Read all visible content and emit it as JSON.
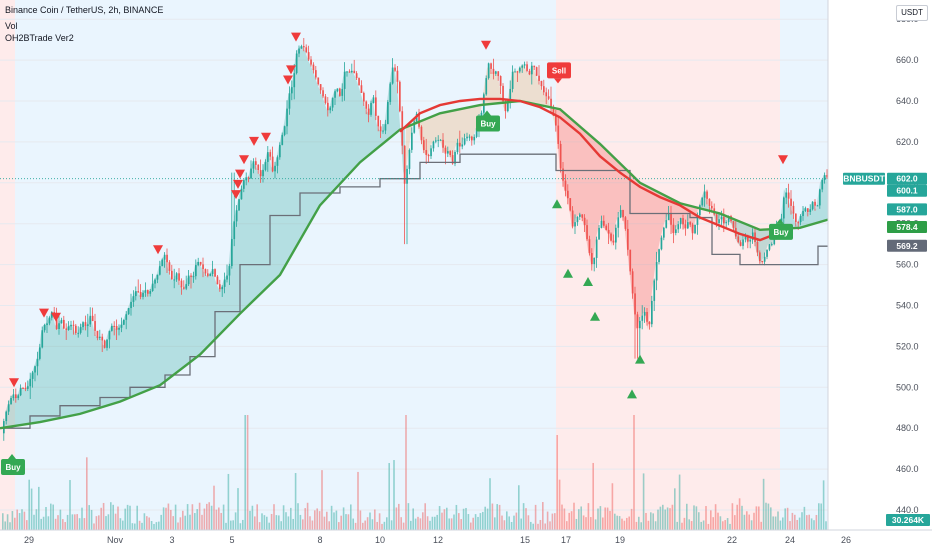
{
  "header": {
    "title": "Binance Coin / TetherUS, 2h, BINANCE",
    "indicator1": "Vol",
    "indicator2": "OH2BTrade Ver2",
    "currency_button": "USDT"
  },
  "price_axis": {
    "ticks": [
      440,
      460,
      480,
      500,
      520,
      540,
      560,
      580,
      600,
      620,
      640,
      660,
      680
    ],
    "tick_labels": [
      "440.0",
      "460.0",
      "480.0",
      "500.0",
      "520.0",
      "540.0",
      "560.0",
      "580.0",
      "600.0",
      "620.0",
      "640.0",
      "660.0",
      "680.0"
    ]
  },
  "price_tags": [
    {
      "text": "BNBUSDT",
      "value": 602.0,
      "color": "#26a69a",
      "kind": "symbol"
    },
    {
      "text": "602.0",
      "value": 602.0,
      "color": "#26a69a",
      "kind": "price"
    },
    {
      "text": "600.1",
      "value": 600.1,
      "color": "#26a69a",
      "kind": "price"
    },
    {
      "text": "587.0",
      "value": 587.0,
      "color": "#26a69a",
      "kind": "price"
    },
    {
      "text": "578.4",
      "value": 578.4,
      "color": "#2e9e47",
      "kind": "price"
    },
    {
      "text": "569.2",
      "value": 569.2,
      "color": "#636a78",
      "kind": "price"
    },
    {
      "text": "30.264K",
      "value": null,
      "color": "#26a69a",
      "kind": "volume"
    }
  ],
  "time_axis": {
    "labels": [
      "29",
      "Nov",
      "3",
      "5",
      "8",
      "10",
      "12",
      "15",
      "17",
      "19",
      "22",
      "24",
      "26"
    ]
  },
  "signals": [
    {
      "type": "buy",
      "text": "Buy"
    },
    {
      "type": "buy",
      "text": "Buy"
    },
    {
      "type": "sell",
      "text": "Sell"
    },
    {
      "type": "buy",
      "text": "Buy"
    }
  ],
  "colors": {
    "bull": "#26a69a",
    "bear": "#ef5350",
    "ma_fast": "#e53935",
    "ma_slow": "#43a047",
    "stop_line": "#6b6f78",
    "bg_long": "#e3f2fd",
    "bg_short": "#fde4e4"
  },
  "chart_data": {
    "type": "candlestick",
    "symbol": "BNBUSDT",
    "timeframe": "2h",
    "ylim": [
      434,
      690
    ],
    "close_path": [
      [
        0,
        476
      ],
      [
        4,
        486
      ],
      [
        8,
        492
      ],
      [
        12,
        497
      ],
      [
        16,
        494
      ],
      [
        20,
        500
      ],
      [
        26,
        499
      ],
      [
        30,
        505
      ],
      [
        34,
        510
      ],
      [
        38,
        516
      ],
      [
        42,
        530
      ],
      [
        46,
        531
      ],
      [
        52,
        538
      ],
      [
        56,
        528
      ],
      [
        60,
        534
      ],
      [
        64,
        527
      ],
      [
        68,
        530
      ],
      [
        72,
        531
      ],
      [
        76,
        525
      ],
      [
        82,
        532
      ],
      [
        86,
        529
      ],
      [
        90,
        536
      ],
      [
        96,
        524
      ],
      [
        100,
        525
      ],
      [
        104,
        519
      ],
      [
        108,
        527
      ],
      [
        112,
        531
      ],
      [
        116,
        528
      ],
      [
        120,
        530
      ],
      [
        124,
        534
      ],
      [
        128,
        539
      ],
      [
        132,
        544
      ],
      [
        136,
        548
      ],
      [
        140,
        544
      ],
      [
        144,
        548
      ],
      [
        148,
        545
      ],
      [
        152,
        551
      ],
      [
        156,
        554
      ],
      [
        160,
        561
      ],
      [
        164,
        565
      ],
      [
        168,
        558
      ],
      [
        172,
        551
      ],
      [
        176,
        556
      ],
      [
        180,
        549
      ],
      [
        184,
        548
      ],
      [
        188,
        555
      ],
      [
        192,
        553
      ],
      [
        196,
        562
      ],
      [
        200,
        560
      ],
      [
        204,
        556
      ],
      [
        208,
        554
      ],
      [
        212,
        558
      ],
      [
        216,
        551
      ],
      [
        220,
        547
      ],
      [
        224,
        553
      ],
      [
        228,
        556
      ],
      [
        232,
        578
      ],
      [
        236,
        587
      ],
      [
        240,
        596
      ],
      [
        244,
        603
      ],
      [
        248,
        602
      ],
      [
        252,
        611
      ],
      [
        256,
        608
      ],
      [
        260,
        603
      ],
      [
        264,
        609
      ],
      [
        268,
        617
      ],
      [
        272,
        605
      ],
      [
        276,
        611
      ],
      [
        280,
        621
      ],
      [
        284,
        628
      ],
      [
        288,
        643
      ],
      [
        292,
        648
      ],
      [
        296,
        664
      ],
      [
        300,
        667
      ],
      [
        304,
        666
      ],
      [
        308,
        660
      ],
      [
        312,
        656
      ],
      [
        316,
        650
      ],
      [
        320,
        645
      ],
      [
        324,
        640
      ],
      [
        328,
        634
      ],
      [
        332,
        642
      ],
      [
        336,
        647
      ],
      [
        340,
        641
      ],
      [
        344,
        655
      ],
      [
        348,
        654
      ],
      [
        352,
        655
      ],
      [
        356,
        651
      ],
      [
        360,
        645
      ],
      [
        364,
        638
      ],
      [
        368,
        633
      ],
      [
        372,
        644
      ],
      [
        376,
        629
      ],
      [
        380,
        625
      ],
      [
        384,
        626
      ],
      [
        388,
        644
      ],
      [
        392,
        657
      ],
      [
        396,
        653
      ],
      [
        400,
        629
      ],
      [
        404,
        598
      ],
      [
        408,
        614
      ],
      [
        412,
        628
      ],
      [
        416,
        634
      ],
      [
        420,
        622
      ],
      [
        424,
        614
      ],
      [
        428,
        613
      ],
      [
        432,
        620
      ],
      [
        436,
        621
      ],
      [
        440,
        621
      ],
      [
        444,
        614
      ],
      [
        448,
        616
      ],
      [
        452,
        609
      ],
      [
        456,
        620
      ],
      [
        460,
        617
      ],
      [
        464,
        622
      ],
      [
        468,
        623
      ],
      [
        472,
        620
      ],
      [
        476,
        627
      ],
      [
        480,
        632
      ],
      [
        484,
        647
      ],
      [
        488,
        659
      ],
      [
        492,
        653
      ],
      [
        496,
        655
      ],
      [
        500,
        647
      ],
      [
        504,
        634
      ],
      [
        508,
        641
      ],
      [
        512,
        655
      ],
      [
        516,
        654
      ],
      [
        520,
        657
      ],
      [
        524,
        658
      ],
      [
        528,
        652
      ],
      [
        532,
        659
      ],
      [
        536,
        652
      ],
      [
        540,
        648
      ],
      [
        544,
        643
      ],
      [
        548,
        641
      ],
      [
        552,
        634
      ],
      [
        556,
        626
      ],
      [
        560,
        606
      ],
      [
        564,
        597
      ],
      [
        568,
        591
      ],
      [
        572,
        578
      ],
      [
        576,
        583
      ],
      [
        580,
        585
      ],
      [
        584,
        579
      ],
      [
        588,
        567
      ],
      [
        592,
        558
      ],
      [
        596,
        573
      ],
      [
        600,
        582
      ],
      [
        604,
        578
      ],
      [
        608,
        575
      ],
      [
        612,
        569
      ],
      [
        616,
        581
      ],
      [
        620,
        587
      ],
      [
        624,
        580
      ],
      [
        628,
        563
      ],
      [
        632,
        545
      ],
      [
        636,
        528
      ],
      [
        640,
        534
      ],
      [
        644,
        537
      ],
      [
        648,
        528
      ],
      [
        652,
        547
      ],
      [
        656,
        562
      ],
      [
        660,
        572
      ],
      [
        664,
        580
      ],
      [
        668,
        585
      ],
      [
        672,
        575
      ],
      [
        676,
        578
      ],
      [
        680,
        583
      ],
      [
        684,
        577
      ],
      [
        688,
        582
      ],
      [
        692,
        575
      ],
      [
        696,
        583
      ],
      [
        700,
        591
      ],
      [
        704,
        596
      ],
      [
        708,
        589
      ],
      [
        712,
        587
      ],
      [
        716,
        580
      ],
      [
        720,
        584
      ],
      [
        724,
        579
      ],
      [
        728,
        584
      ],
      [
        732,
        579
      ],
      [
        736,
        572
      ],
      [
        740,
        569
      ],
      [
        744,
        575
      ],
      [
        748,
        570
      ],
      [
        752,
        576
      ],
      [
        756,
        567
      ],
      [
        760,
        560
      ],
      [
        764,
        564
      ],
      [
        768,
        570
      ],
      [
        772,
        570
      ],
      [
        776,
        578
      ],
      [
        780,
        580
      ],
      [
        784,
        597
      ],
      [
        788,
        592
      ],
      [
        792,
        586
      ],
      [
        796,
        579
      ],
      [
        800,
        584
      ],
      [
        804,
        588
      ],
      [
        808,
        585
      ],
      [
        812,
        591
      ],
      [
        816,
        587
      ],
      [
        820,
        600
      ],
      [
        824,
        604
      ],
      [
        828,
        602
      ]
    ],
    "ma_slow_path": [
      [
        0,
        480
      ],
      [
        40,
        483
      ],
      [
        80,
        487
      ],
      [
        120,
        493
      ],
      [
        160,
        501
      ],
      [
        200,
        516
      ],
      [
        240,
        536
      ],
      [
        280,
        555
      ],
      [
        320,
        589
      ],
      [
        360,
        610
      ],
      [
        400,
        626
      ],
      [
        440,
        634
      ],
      [
        480,
        638
      ],
      [
        520,
        640
      ],
      [
        560,
        636
      ],
      [
        600,
        619
      ],
      [
        640,
        600
      ],
      [
        680,
        590
      ],
      [
        720,
        585
      ],
      [
        760,
        577
      ],
      [
        800,
        578
      ],
      [
        828,
        582
      ]
    ],
    "ma_fast_path": [
      [
        400,
        625
      ],
      [
        420,
        634
      ],
      [
        440,
        638
      ],
      [
        460,
        640
      ],
      [
        480,
        641
      ],
      [
        500,
        641
      ],
      [
        520,
        640
      ],
      [
        540,
        637
      ],
      [
        560,
        632
      ],
      [
        580,
        624
      ],
      [
        600,
        613
      ],
      [
        620,
        605
      ],
      [
        640,
        598
      ],
      [
        660,
        593
      ],
      [
        680,
        589
      ],
      [
        700,
        583
      ],
      [
        720,
        579
      ],
      [
        740,
        575
      ],
      [
        760,
        572
      ],
      [
        776,
        575
      ]
    ],
    "stop_line_path": [
      [
        0,
        480
      ],
      [
        30,
        480
      ],
      [
        30,
        486
      ],
      [
        60,
        486
      ],
      [
        60,
        491
      ],
      [
        100,
        491
      ],
      [
        100,
        495
      ],
      [
        130,
        495
      ],
      [
        130,
        500
      ],
      [
        165,
        500
      ],
      [
        165,
        506
      ],
      [
        190,
        506
      ],
      [
        190,
        515
      ],
      [
        215,
        515
      ],
      [
        215,
        537
      ],
      [
        240,
        537
      ],
      [
        240,
        560
      ],
      [
        270,
        560
      ],
      [
        270,
        584
      ],
      [
        300,
        584
      ],
      [
        300,
        595
      ],
      [
        340,
        595
      ],
      [
        340,
        598
      ],
      [
        380,
        598
      ],
      [
        380,
        602
      ],
      [
        420,
        602
      ],
      [
        420,
        610
      ],
      [
        460,
        610
      ],
      [
        460,
        614
      ],
      [
        556,
        614
      ],
      [
        556,
        606
      ],
      [
        630,
        606
      ],
      [
        630,
        585
      ],
      [
        690,
        585
      ],
      [
        690,
        583
      ],
      [
        712,
        583
      ],
      [
        712,
        565
      ],
      [
        740,
        565
      ],
      [
        740,
        560
      ],
      [
        760,
        560
      ],
      [
        760,
        560
      ],
      [
        818,
        560
      ],
      [
        818,
        569
      ],
      [
        828,
        569
      ]
    ],
    "sell_markers": [
      [
        14,
        502
      ],
      [
        44,
        536
      ],
      [
        56,
        534
      ],
      [
        158,
        567
      ],
      [
        236,
        594
      ],
      [
        238,
        599
      ],
      [
        240,
        604
      ],
      [
        244,
        611
      ],
      [
        254,
        620
      ],
      [
        266,
        622
      ],
      [
        288,
        650
      ],
      [
        291,
        655
      ],
      [
        296,
        671
      ],
      [
        486,
        667
      ],
      [
        783,
        611
      ]
    ],
    "buy_markers": [
      [
        557,
        590
      ],
      [
        568,
        556
      ],
      [
        588,
        552
      ],
      [
        595,
        535
      ],
      [
        640,
        514
      ],
      [
        632,
        497
      ]
    ],
    "signal_values": [
      [
        12,
        461
      ],
      [
        487,
        629
      ],
      [
        558,
        655
      ],
      [
        780,
        576
      ]
    ],
    "regimes": [
      [
        "short",
        0,
        15
      ],
      [
        "long",
        15,
        556
      ],
      [
        "short",
        556,
        780
      ],
      [
        "long",
        780,
        828
      ]
    ]
  }
}
